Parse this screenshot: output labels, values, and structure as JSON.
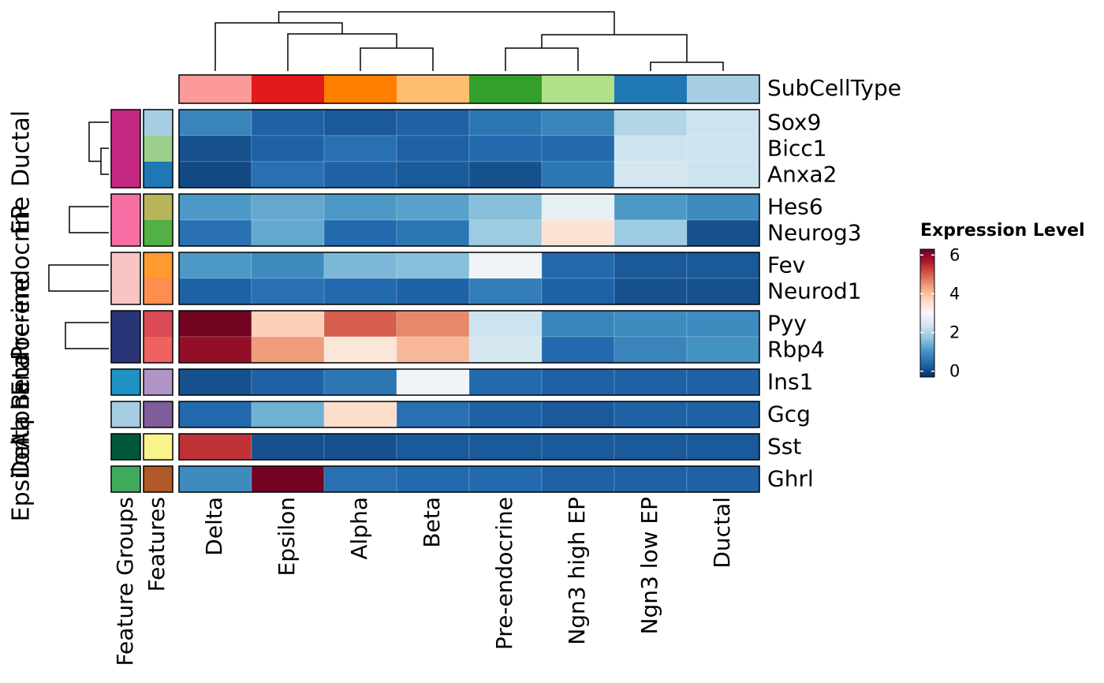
{
  "chart_data": {
    "type": "heatmap",
    "column_annotation_label": "SubCellType",
    "row_annotation_labels": [
      "Feature Groups",
      "Features"
    ],
    "columns": [
      {
        "name": "Delta",
        "color": "#fb9a99"
      },
      {
        "name": "Epsilon",
        "color": "#e31a1c"
      },
      {
        "name": "Alpha",
        "color": "#ff7f00"
      },
      {
        "name": "Beta",
        "color": "#fdbf6f"
      },
      {
        "name": "Pre-endocrine",
        "color": "#33a02c"
      },
      {
        "name": "Ngn3 high EP",
        "color": "#b2df8a"
      },
      {
        "name": "Ngn3 low EP",
        "color": "#1f78b4"
      },
      {
        "name": "Ductal",
        "color": "#a6cee3"
      }
    ],
    "groups": [
      {
        "name": "Ductal",
        "color": "#c2287f",
        "rows": [
          {
            "name": "Sox9",
            "color": "#a6cee3",
            "values": [
              0.8,
              0.3,
              0.2,
              0.3,
              0.6,
              0.8,
              2.0,
              2.3
            ]
          },
          {
            "name": "Bicc1",
            "color": "#9ccf8d",
            "values": [
              0.1,
              0.3,
              0.5,
              0.3,
              0.4,
              0.4,
              2.3,
              2.3
            ]
          },
          {
            "name": "Anxa2",
            "color": "#1f78b4",
            "values": [
              0.0,
              0.5,
              0.3,
              0.2,
              0.1,
              0.6,
              2.4,
              2.3
            ]
          }
        ]
      },
      {
        "name": "EP",
        "color": "#f76ea5",
        "rows": [
          {
            "name": "Hes6",
            "color": "#b8b45a",
            "values": [
              1.1,
              1.3,
              1.1,
              1.2,
              1.6,
              2.7,
              1.1,
              0.9
            ]
          },
          {
            "name": "Neurog3",
            "color": "#53b044",
            "values": [
              0.5,
              1.3,
              0.4,
              0.6,
              1.8,
              3.5,
              1.8,
              0.1
            ]
          }
        ]
      },
      {
        "name": "Pre-endocrine",
        "color": "#fbc4c4",
        "rows": [
          {
            "name": "Fev",
            "color": "#ff9a2e",
            "values": [
              1.1,
              0.9,
              1.5,
              1.6,
              2.9,
              0.4,
              0.2,
              0.2
            ]
          },
          {
            "name": "Neurod1",
            "color": "#fe8d50",
            "values": [
              0.3,
              0.5,
              0.4,
              0.3,
              0.7,
              0.3,
              0.1,
              0.1
            ]
          }
        ]
      },
      {
        "name": "Endocrine",
        "color": "#293476",
        "rows": [
          {
            "name": "Pyy",
            "color": "#dc4a56",
            "values": [
              6.2,
              3.8,
              5.0,
              4.6,
              2.3,
              0.8,
              0.9,
              0.9
            ]
          },
          {
            "name": "Rbp4",
            "color": "#f06262",
            "values": [
              5.9,
              4.4,
              3.4,
              4.1,
              2.4,
              0.4,
              0.8,
              1.0
            ]
          }
        ]
      },
      {
        "name": "Beta",
        "color": "#1f91c3",
        "rows": [
          {
            "name": "Ins1",
            "color": "#b094c6",
            "values": [
              0.1,
              0.3,
              0.6,
              2.9,
              0.4,
              0.3,
              0.3,
              0.3
            ]
          }
        ]
      },
      {
        "name": "Alpha",
        "color": "#a6cce3",
        "rows": [
          {
            "name": "Gcg",
            "color": "#7f5c9a",
            "values": [
              0.4,
              1.4,
              3.6,
              0.5,
              0.3,
              0.2,
              0.3,
              0.3
            ]
          }
        ]
      },
      {
        "name": "Delta",
        "color": "#00573a",
        "rows": [
          {
            "name": "Sst",
            "color": "#f8f38d",
            "values": [
              5.4,
              0.1,
              0.1,
              0.2,
              0.2,
              0.2,
              0.2,
              0.2
            ]
          }
        ]
      },
      {
        "name": "Epsilon",
        "color": "#41ab5d",
        "rows": [
          {
            "name": "Ghrl",
            "color": "#b15928",
            "values": [
              0.9,
              6.2,
              0.5,
              0.4,
              0.4,
              0.3,
              0.3,
              0.3
            ]
          }
        ]
      }
    ],
    "legend_title": "Expression Level",
    "colorlim": [
      -0.3,
      6.3
    ],
    "colorticks": [
      0,
      2,
      4,
      6
    ],
    "colorscale": [
      "#053061",
      "#2166ac",
      "#4393c3",
      "#92c5de",
      "#d1e5f0",
      "#f7f7f7",
      "#fddbc7",
      "#f4a582",
      "#d6604d",
      "#b2182b",
      "#67001f"
    ]
  }
}
